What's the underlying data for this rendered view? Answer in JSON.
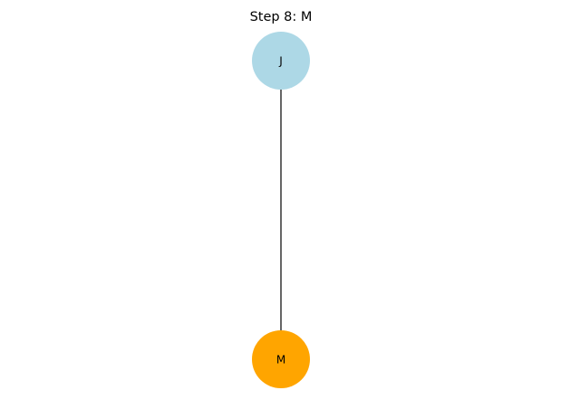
{
  "title": "Step 8: M",
  "nodes": [
    {
      "id": "J",
      "label": "J",
      "color": "#add8e6"
    },
    {
      "id": "M",
      "label": "M",
      "color": "#ffa500"
    }
  ],
  "edges": [
    {
      "from": "J",
      "to": "M"
    }
  ]
}
